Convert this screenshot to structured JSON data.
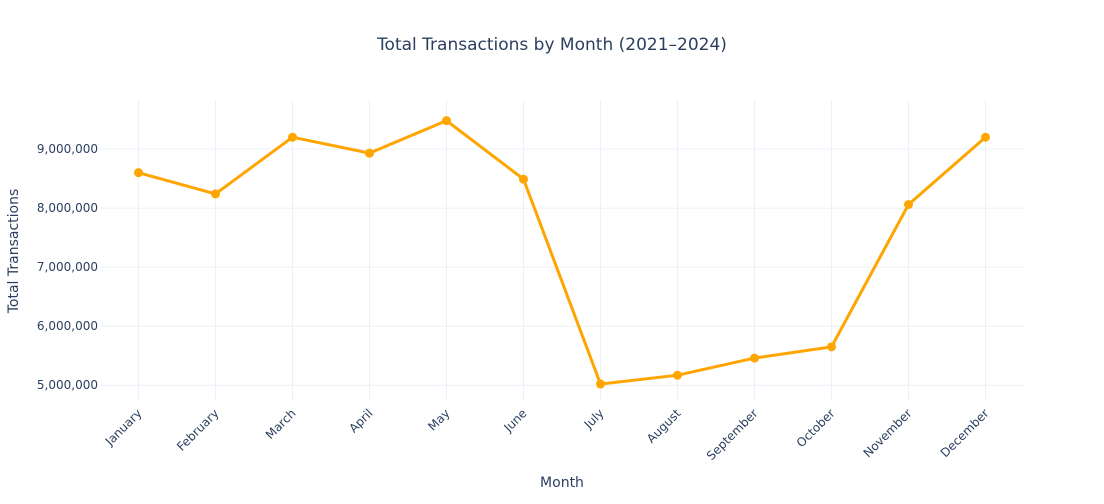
{
  "chart_data": {
    "type": "line",
    "title": "Total Transactions by Month (2021–2024)",
    "xlabel": "Month",
    "ylabel": "Total Transactions",
    "categories": [
      "January",
      "February",
      "March",
      "April",
      "May",
      "June",
      "July",
      "August",
      "September",
      "October",
      "November",
      "December"
    ],
    "series": [
      {
        "values": [
          8600000,
          8240000,
          9200000,
          8930000,
          9480000,
          8490000,
          5020000,
          5170000,
          5460000,
          5650000,
          8060000,
          9200000
        ],
        "color": "#FFA500"
      }
    ],
    "ylim": [
      4750000,
      9830000
    ],
    "yticks": [
      5000000,
      6000000,
      7000000,
      8000000,
      9000000
    ],
    "ytick_labels": [
      "5,000,000",
      "6,000,000",
      "7,000,000",
      "8,000,000",
      "9,000,000"
    ],
    "grid": true,
    "legend": "none"
  }
}
